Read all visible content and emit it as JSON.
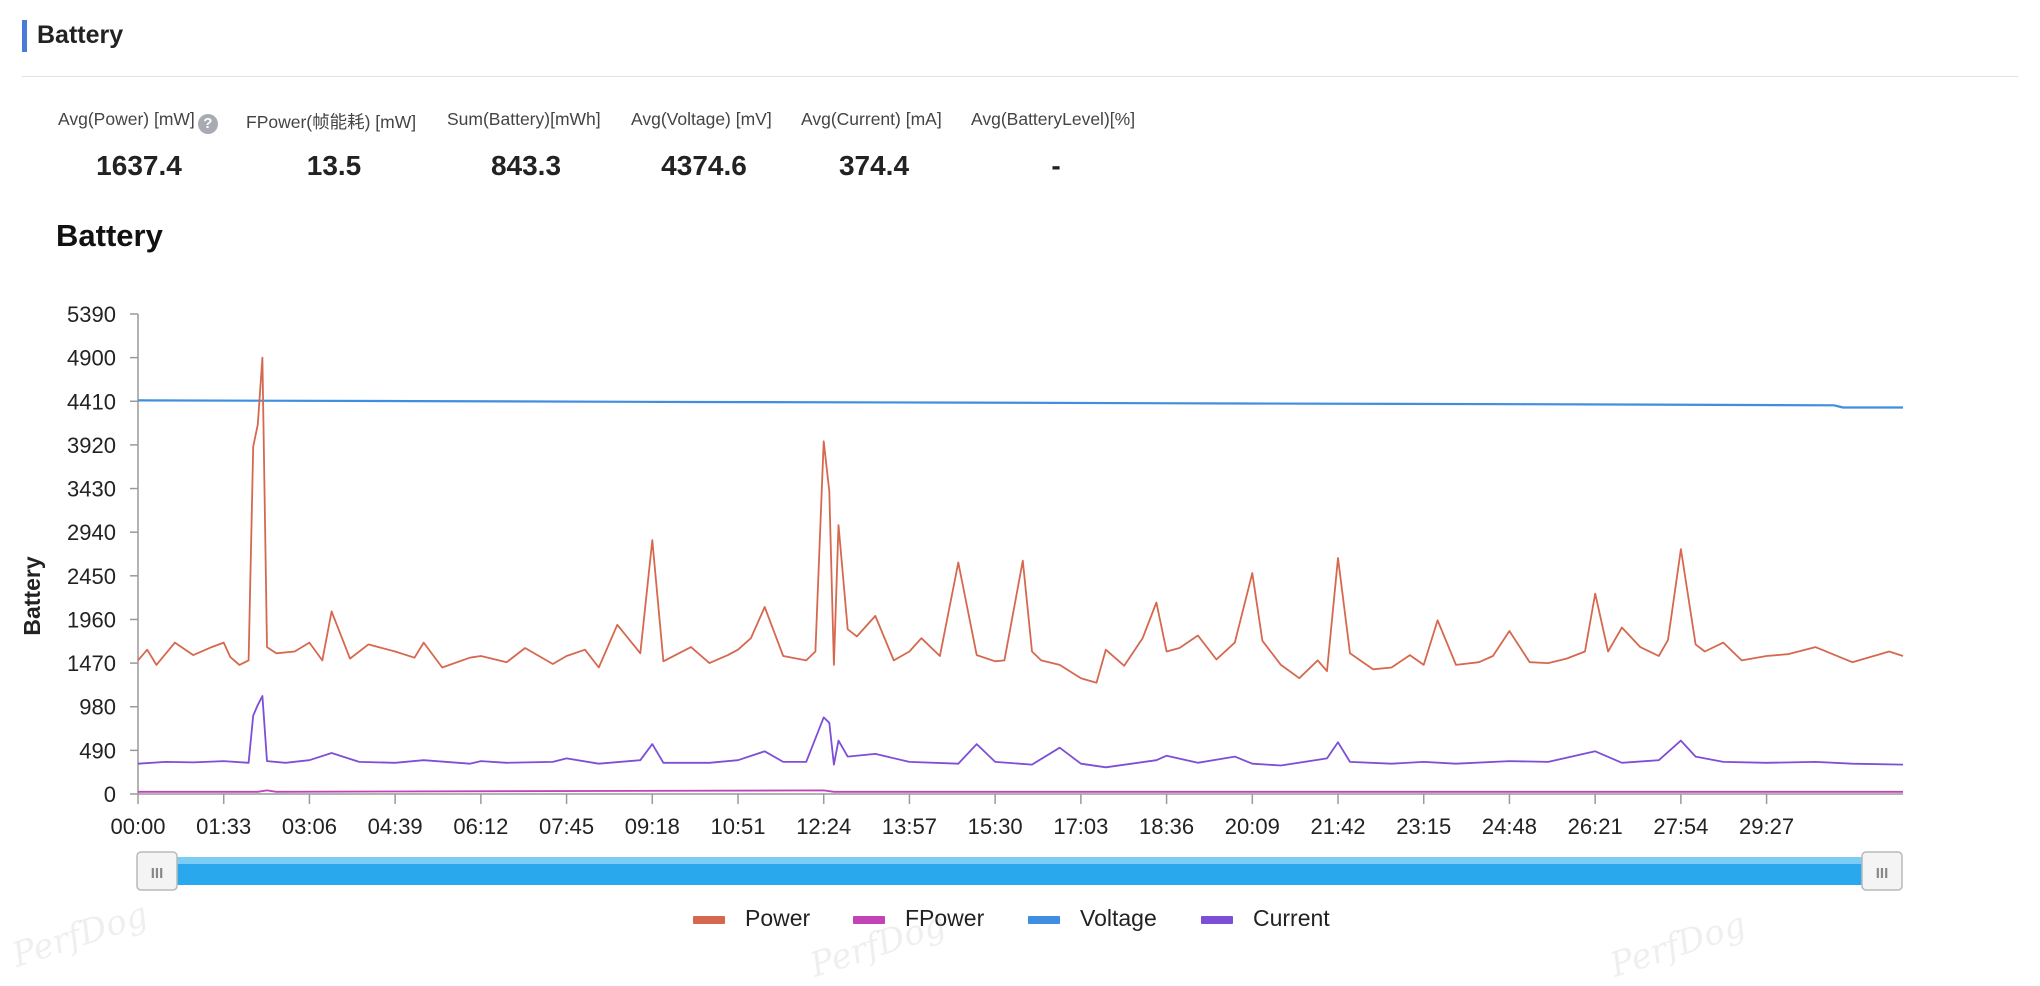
{
  "section": {
    "title": "Battery"
  },
  "metrics": [
    {
      "label": "Avg(Power) [mW]",
      "value": "1637.4",
      "help": "?"
    },
    {
      "label": "FPower(帧能耗) [mW]",
      "value": "13.5"
    },
    {
      "label": "Sum(Battery)[mWh]",
      "value": "843.3"
    },
    {
      "label": "Avg(Voltage) [mV]",
      "value": "4374.6"
    },
    {
      "label": "Avg(Current) [mA]",
      "value": "374.4"
    },
    {
      "label": "Avg(BatteryLevel)[%]",
      "value": "-"
    }
  ],
  "chart_data": {
    "type": "line",
    "title": "Battery",
    "ylabel": "Battery",
    "ylim": [
      0,
      5390
    ],
    "yticks": [
      0,
      490,
      980,
      1470,
      1960,
      2450,
      2940,
      3430,
      3920,
      4410,
      4900,
      5390
    ],
    "xlim_seconds": [
      0,
      1915
    ],
    "xticks": [
      "00:00",
      "01:33",
      "03:06",
      "04:39",
      "06:12",
      "07:45",
      "09:18",
      "10:51",
      "12:24",
      "13:57",
      "15:30",
      "17:03",
      "18:36",
      "20:09",
      "21:42",
      "23:15",
      "24:48",
      "26:21",
      "27:54",
      "29:27"
    ],
    "legend_position": "bottom-center",
    "grid": false,
    "colors": {
      "Power": "#d6684f",
      "FPower": "#c243b5",
      "Voltage": "#3f8ee0",
      "Current": "#7d4ed6"
    },
    "series": [
      {
        "name": "Power",
        "x": [
          "00:00",
          "00:10",
          "00:20",
          "00:40",
          "01:00",
          "01:20",
          "01:33",
          "01:40",
          "01:50",
          "02:00",
          "02:05",
          "02:10",
          "02:15",
          "02:20",
          "02:30",
          "02:50",
          "03:06",
          "03:20",
          "03:30",
          "03:50",
          "04:10",
          "04:39",
          "05:00",
          "05:10",
          "05:30",
          "06:00",
          "06:12",
          "06:40",
          "07:00",
          "07:30",
          "07:45",
          "08:05",
          "08:20",
          "08:40",
          "09:05",
          "09:18",
          "09:30",
          "10:00",
          "10:20",
          "10:40",
          "10:51",
          "11:05",
          "11:20",
          "11:40",
          "12:05",
          "12:15",
          "12:24",
          "12:30",
          "12:35",
          "12:40",
          "12:50",
          "13:00",
          "13:20",
          "13:40",
          "13:57",
          "14:10",
          "14:30",
          "14:50",
          "15:10",
          "15:30",
          "15:40",
          "16:00",
          "16:10",
          "16:20",
          "16:40",
          "17:03",
          "17:20",
          "17:30",
          "17:50",
          "18:10",
          "18:25",
          "18:36",
          "18:50",
          "19:10",
          "19:30",
          "19:50",
          "20:09",
          "20:20",
          "20:40",
          "21:00",
          "21:20",
          "21:30",
          "21:42",
          "21:55",
          "22:20",
          "22:40",
          "23:00",
          "23:15",
          "23:30",
          "23:50",
          "24:15",
          "24:30",
          "24:48",
          "25:10",
          "25:30",
          "25:50",
          "26:10",
          "26:21",
          "26:35",
          "26:50",
          "27:10",
          "27:30",
          "27:40",
          "27:54",
          "28:10",
          "28:20",
          "28:40",
          "29:00",
          "29:27",
          "29:50",
          "30:20",
          "31:00",
          "31:40",
          "31:55"
        ],
        "values": [
          1500,
          1620,
          1450,
          1700,
          1560,
          1650,
          1700,
          1540,
          1450,
          1500,
          3900,
          4150,
          4900,
          1650,
          1580,
          1600,
          1700,
          1500,
          2050,
          1520,
          1680,
          1600,
          1530,
          1700,
          1420,
          1530,
          1550,
          1480,
          1640,
          1460,
          1550,
          1620,
          1420,
          1900,
          1580,
          2850,
          1490,
          1650,
          1470,
          1560,
          1620,
          1750,
          2100,
          1550,
          1500,
          1600,
          3960,
          3400,
          1450,
          3020,
          1850,
          1770,
          2000,
          1500,
          1600,
          1750,
          1550,
          2600,
          1560,
          1490,
          1500,
          2620,
          1600,
          1500,
          1450,
          1300,
          1250,
          1620,
          1440,
          1750,
          2150,
          1600,
          1640,
          1780,
          1510,
          1700,
          2480,
          1720,
          1450,
          1300,
          1500,
          1380,
          2650,
          1580,
          1400,
          1420,
          1560,
          1450,
          1950,
          1450,
          1480,
          1550,
          1830,
          1480,
          1470,
          1520,
          1600,
          2250,
          1600,
          1870,
          1650,
          1550,
          1730,
          2750,
          1680,
          1600,
          1700,
          1500,
          1550,
          1570,
          1650,
          1480,
          1600,
          1550
        ]
      },
      {
        "name": "FPower",
        "x": [
          "00:00",
          "02:10",
          "02:20",
          "02:30",
          "12:24",
          "12:35",
          "31:55"
        ],
        "values": [
          25,
          25,
          40,
          25,
          40,
          25,
          25
        ]
      },
      {
        "name": "Voltage",
        "x": [
          "00:00",
          "05:00",
          "10:00",
          "15:00",
          "20:00",
          "25:00",
          "30:40",
          "30:50",
          "31:55"
        ],
        "values": [
          4420,
          4412,
          4402,
          4395,
          4385,
          4377,
          4365,
          4340,
          4340
        ]
      },
      {
        "name": "Current",
        "x": [
          "00:00",
          "00:30",
          "01:00",
          "01:33",
          "02:00",
          "02:05",
          "02:10",
          "02:15",
          "02:20",
          "02:40",
          "03:06",
          "03:30",
          "04:00",
          "04:39",
          "05:10",
          "06:00",
          "06:12",
          "06:40",
          "07:30",
          "07:45",
          "08:20",
          "09:05",
          "09:18",
          "09:30",
          "10:20",
          "10:51",
          "11:20",
          "11:40",
          "12:05",
          "12:24",
          "12:30",
          "12:35",
          "12:40",
          "12:50",
          "13:20",
          "13:57",
          "14:50",
          "15:10",
          "15:30",
          "16:10",
          "16:40",
          "17:03",
          "17:30",
          "18:25",
          "18:36",
          "19:10",
          "19:50",
          "20:09",
          "20:40",
          "21:30",
          "21:42",
          "21:55",
          "22:40",
          "23:15",
          "23:50",
          "24:48",
          "25:30",
          "26:21",
          "26:50",
          "27:30",
          "27:54",
          "28:10",
          "28:40",
          "29:27",
          "30:20",
          "31:00",
          "31:55"
        ],
        "values": [
          340,
          360,
          355,
          370,
          350,
          880,
          1000,
          1100,
          370,
          350,
          380,
          460,
          360,
          350,
          380,
          340,
          370,
          350,
          360,
          400,
          340,
          380,
          560,
          350,
          350,
          380,
          480,
          360,
          360,
          860,
          800,
          330,
          600,
          420,
          450,
          360,
          340,
          560,
          360,
          330,
          520,
          340,
          300,
          380,
          430,
          350,
          420,
          340,
          320,
          400,
          580,
          360,
          340,
          360,
          340,
          370,
          360,
          480,
          350,
          380,
          600,
          420,
          360,
          350,
          360,
          340,
          330
        ]
      }
    ]
  },
  "slider": {
    "handle_glyph": "III"
  },
  "watermarks": [
    "PerfDog",
    "PerfDog",
    "PerfDog"
  ]
}
